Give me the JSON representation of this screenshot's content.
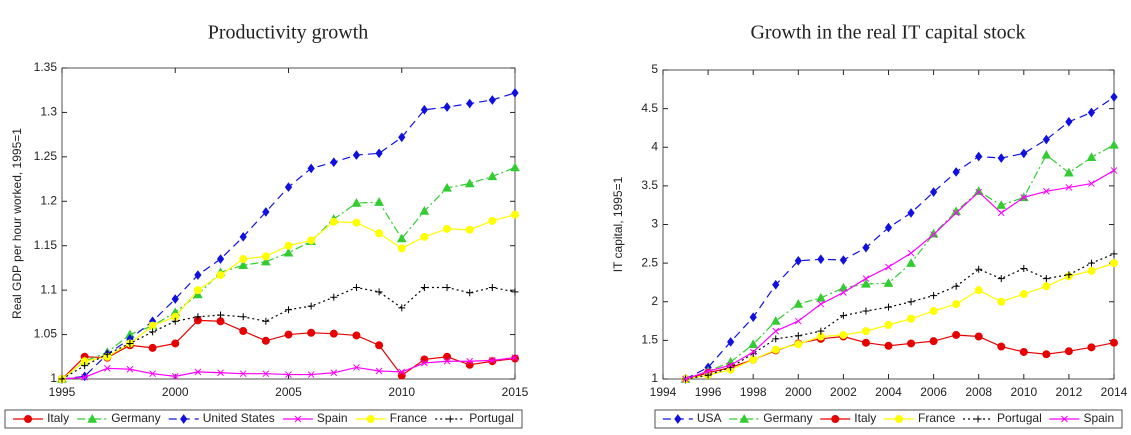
{
  "chart_data": [
    {
      "type": "line",
      "title": "Productivity growth",
      "y_label": "Real GDP per hour worked, 1995=1",
      "x": [
        1995,
        1996,
        1997,
        1998,
        1999,
        2000,
        2001,
        2002,
        2003,
        2004,
        2005,
        2006,
        2007,
        2008,
        2009,
        2010,
        2011,
        2012,
        2013,
        2014,
        2015
      ],
      "xlim": [
        1995,
        2015
      ],
      "xticks": [
        1995,
        2000,
        2005,
        2010,
        2015
      ],
      "ylim": [
        1,
        1.35
      ],
      "yticks": [
        1,
        1.05,
        1.1,
        1.15,
        1.2,
        1.25,
        1.3,
        1.35
      ],
      "legend": "bottom",
      "series": [
        {
          "name": "Italy",
          "color": "#e60000",
          "marker": "circle",
          "linestyle": "solid",
          "values": [
            1,
            1.025,
            1.024,
            1.038,
            1.035,
            1.04,
            1.066,
            1.065,
            1.054,
            1.043,
            1.05,
            1.052,
            1.051,
            1.049,
            1.038,
            1.004,
            1.022,
            1.025,
            1.016,
            1.02,
            1.023
          ]
        },
        {
          "name": "Germany",
          "color": "#33cc33",
          "marker": "triangle",
          "linestyle": "dashdot",
          "values": [
            1,
            1.02,
            1.03,
            1.05,
            1.06,
            1.075,
            1.095,
            1.12,
            1.128,
            1.132,
            1.142,
            1.155,
            1.18,
            1.198,
            1.199,
            1.158,
            1.189,
            1.215,
            1.22,
            1.228,
            1.238
          ]
        },
        {
          "name": "United States",
          "color": "#1010e0",
          "marker": "diamond",
          "linestyle": "dashed",
          "values": [
            1,
            1.003,
            1.028,
            1.045,
            1.065,
            1.09,
            1.117,
            1.135,
            1.16,
            1.188,
            1.216,
            1.237,
            1.244,
            1.252,
            1.254,
            1.272,
            1.303,
            1.306,
            1.31,
            1.314,
            1.322
          ]
        },
        {
          "name": "Spain",
          "color": "#ff00ff",
          "marker": "x",
          "linestyle": "solid",
          "values": [
            1,
            1.002,
            1.012,
            1.011,
            1.006,
            1.003,
            1.008,
            1.007,
            1.006,
            1.006,
            1.005,
            1.005,
            1.007,
            1.013,
            1.009,
            1.008,
            1.018,
            1.02,
            1.02,
            1.021,
            1.024
          ]
        },
        {
          "name": "France",
          "color": "#ffff00",
          "marker": "circle",
          "linestyle": "solid",
          "values": [
            1,
            1.02,
            1.025,
            1.04,
            1.06,
            1.07,
            1.1,
            1.117,
            1.135,
            1.138,
            1.15,
            1.156,
            1.177,
            1.176,
            1.164,
            1.147,
            1.16,
            1.169,
            1.168,
            1.178,
            1.185
          ]
        },
        {
          "name": "Portugal",
          "color": "#000000",
          "marker": "plus",
          "linestyle": "dotted",
          "values": [
            1,
            1.015,
            1.028,
            1.04,
            1.053,
            1.065,
            1.07,
            1.072,
            1.07,
            1.065,
            1.078,
            1.082,
            1.092,
            1.103,
            1.098,
            1.08,
            1.103,
            1.103,
            1.097,
            1.103,
            1.098
          ]
        }
      ]
    },
    {
      "type": "line",
      "title": "Growth in the real IT capital stock",
      "y_label": "IT capital, 1995=1",
      "x": [
        1995,
        1996,
        1997,
        1998,
        1999,
        2000,
        2001,
        2002,
        2003,
        2004,
        2005,
        2006,
        2007,
        2008,
        2009,
        2010,
        2011,
        2012,
        2013,
        2014
      ],
      "xlim": [
        1994,
        2014
      ],
      "xticks": [
        1994,
        1996,
        1998,
        2000,
        2002,
        2004,
        2006,
        2008,
        2010,
        2012,
        2014
      ],
      "ylim": [
        1,
        5
      ],
      "yticks": [
        1,
        1.5,
        2,
        2.5,
        3,
        3.5,
        4,
        4.5,
        5
      ],
      "legend": "bottom",
      "series": [
        {
          "name": "USA",
          "color": "#1010e0",
          "marker": "diamond",
          "linestyle": "dashed",
          "values": [
            1,
            1.15,
            1.48,
            1.8,
            2.22,
            2.53,
            2.55,
            2.54,
            2.7,
            2.96,
            3.15,
            3.42,
            3.68,
            3.88,
            3.86,
            3.92,
            4.1,
            4.33,
            4.45,
            4.65
          ]
        },
        {
          "name": "Germany",
          "color": "#33cc33",
          "marker": "triangle",
          "linestyle": "dashdot",
          "values": [
            1,
            1.1,
            1.22,
            1.45,
            1.75,
            1.97,
            2.05,
            2.18,
            2.23,
            2.24,
            2.5,
            2.88,
            3.17,
            3.43,
            3.25,
            3.35,
            3.9,
            3.67,
            3.87,
            4.03
          ]
        },
        {
          "name": "Italy",
          "color": "#e60000",
          "marker": "circle",
          "linestyle": "solid",
          "values": [
            1,
            1.08,
            1.15,
            1.25,
            1.37,
            1.46,
            1.52,
            1.55,
            1.47,
            1.43,
            1.46,
            1.49,
            1.57,
            1.55,
            1.42,
            1.35,
            1.32,
            1.36,
            1.41,
            1.47
          ]
        },
        {
          "name": "France",
          "color": "#ffff00",
          "marker": "circle",
          "linestyle": "solid",
          "values": [
            1,
            1.05,
            1.12,
            1.25,
            1.38,
            1.45,
            1.55,
            1.57,
            1.62,
            1.7,
            1.78,
            1.88,
            1.97,
            2.15,
            2,
            2.1,
            2.2,
            2.33,
            2.4,
            2.5
          ]
        },
        {
          "name": "Portugal",
          "color": "#000000",
          "marker": "plus",
          "linestyle": "dotted",
          "values": [
            1,
            1.05,
            1.15,
            1.33,
            1.52,
            1.56,
            1.62,
            1.82,
            1.88,
            1.93,
            2,
            2.08,
            2.2,
            2.42,
            2.3,
            2.43,
            2.3,
            2.35,
            2.5,
            2.62
          ]
        },
        {
          "name": "Spain",
          "color": "#ff00ff",
          "marker": "x",
          "linestyle": "solid",
          "values": [
            1,
            1.1,
            1.18,
            1.35,
            1.62,
            1.75,
            1.97,
            2.12,
            2.3,
            2.45,
            2.63,
            2.87,
            3.15,
            3.42,
            3.15,
            3.35,
            3.43,
            3.48,
            3.53,
            3.7
          ]
        }
      ]
    }
  ]
}
